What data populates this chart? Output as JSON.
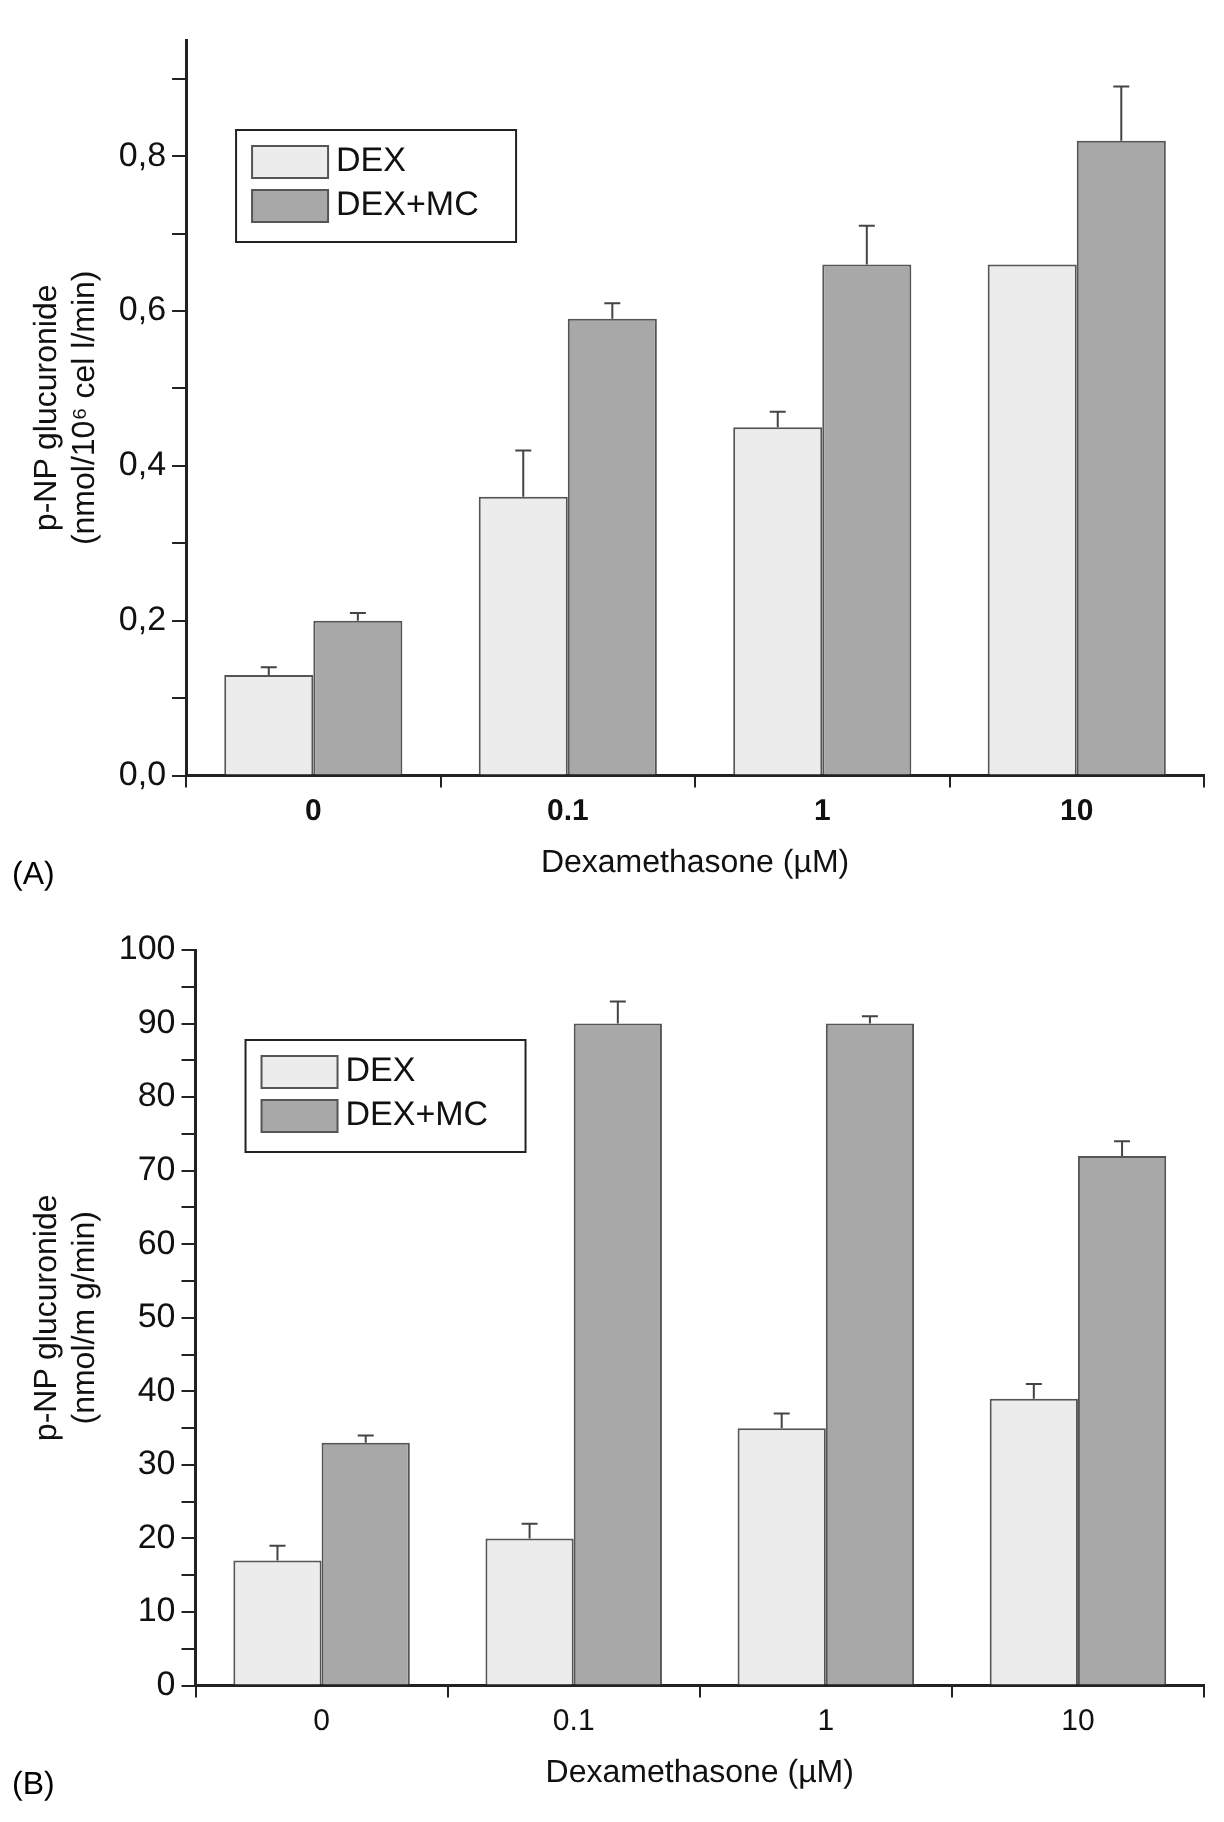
{
  "chart_data": [
    {
      "type": "bar",
      "xlabel": "Dexamethasone (µM)",
      "ylabel": "p-NP glucuronide\n(nmol/10⁶ cel l/min)",
      "annotations": [
        "(A)"
      ],
      "categories": [
        "0",
        "0.1",
        "1",
        "10"
      ],
      "series": [
        {
          "name": "DEX",
          "color": "#ececec",
          "values": [
            0.13,
            0.36,
            0.45,
            0.66
          ],
          "errors": [
            [
              0.13,
              0.14
            ],
            [
              0.36,
              0.42
            ],
            [
              0.45,
              0.47
            ],
            null
          ]
        },
        {
          "name": "DEX+MC",
          "color": "#a8a8a8",
          "values": [
            0.2,
            0.59,
            0.66,
            0.82
          ],
          "errors": [
            [
              0.2,
              0.21
            ],
            [
              0.59,
              0.61
            ],
            [
              0.66,
              0.71
            ],
            [
              0.82,
              0.89
            ]
          ]
        }
      ],
      "ylim": [
        0,
        0.95
      ],
      "yticks": [
        {
          "value": 0,
          "label": "0,0"
        },
        {
          "value": 0.1,
          "label": null
        },
        {
          "value": 0.2,
          "label": "0,2"
        },
        {
          "value": 0.3,
          "label": null
        },
        {
          "value": 0.4,
          "label": "0,4"
        },
        {
          "value": 0.5,
          "label": null
        },
        {
          "value": 0.6,
          "label": "0,6"
        },
        {
          "value": 0.7,
          "label": null
        },
        {
          "value": 0.8,
          "label": "0,8"
        },
        {
          "value": 0.9,
          "label": null
        }
      ],
      "grid": false,
      "legend": "top left"
    },
    {
      "type": "bar",
      "xlabel": "Dexamethasone (µM)",
      "ylabel": "p-NP glucuronide\n(nmol/m g/min)",
      "annotations": [
        "(B)"
      ],
      "categories": [
        "0",
        "0.1",
        "1",
        "10"
      ],
      "series": [
        {
          "name": "DEX",
          "color": "#ececec",
          "values": [
            17,
            20,
            35,
            39
          ],
          "errors": [
            [
              17,
              19
            ],
            [
              20,
              22
            ],
            [
              35,
              37
            ],
            [
              39,
              41
            ]
          ]
        },
        {
          "name": "DEX+MC",
          "color": "#a8a8a8",
          "values": [
            33,
            90,
            90,
            72
          ],
          "errors": [
            [
              33,
              34
            ],
            [
              90,
              93
            ],
            [
              90,
              91
            ],
            [
              72,
              74
            ]
          ]
        }
      ],
      "ylim": [
        0,
        100
      ],
      "yticks": [
        0,
        {
          "value": 5,
          "label": null
        },
        10,
        {
          "value": 15,
          "label": null
        },
        20,
        {
          "value": 25,
          "label": null
        },
        30,
        {
          "value": 35,
          "label": null
        },
        40,
        {
          "value": 45,
          "label": null
        },
        50,
        {
          "value": 55,
          "label": null
        },
        60,
        {
          "value": 65,
          "label": null
        },
        70,
        {
          "value": 75,
          "label": null
        },
        80,
        {
          "value": 85,
          "label": null
        },
        90,
        {
          "value": 95,
          "label": null
        },
        100
      ],
      "grid": false,
      "legend": "top left"
    }
  ]
}
